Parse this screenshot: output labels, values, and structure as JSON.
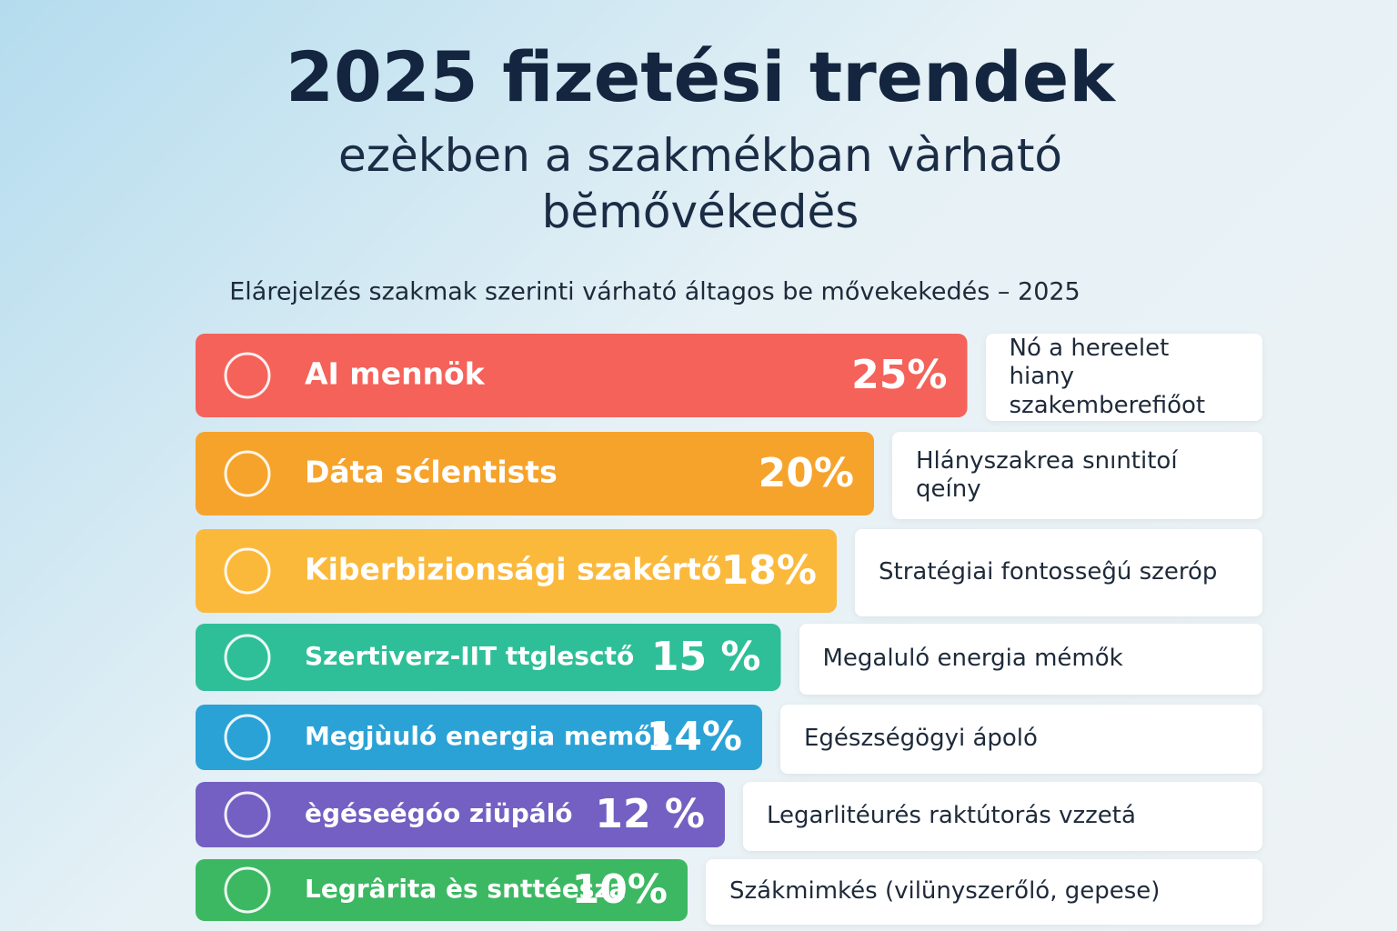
{
  "chart_data": {
    "type": "bar",
    "title": "2025 fizetési trendek",
    "subtitle": "ezèkben a szakmékban vàrható bĕmővékedĕs",
    "caption": "Elárejelzés szakmak szerinti várható áltagos be mővekekedés – 2025",
    "categories": [
      "AI mennök",
      "Dáta sćlentists",
      "Kiberbizionsági szakértő",
      "Szertiverz-IIT ttglesctő",
      "Megjùuló energia memőb",
      "ègéseégóo ziüpáló",
      "Legrârita ès snttéesza"
    ],
    "values": [
      25,
      20,
      18,
      15,
      14,
      12,
      10
    ],
    "value_labels": [
      "25%",
      "20%",
      "18%",
      "15 %",
      "14%",
      "12 %",
      "10%"
    ],
    "colors": [
      "#f4625a",
      "#f6a32c",
      "#fbb93c",
      "#2fbf98",
      "#2aa2d6",
      "#7360c2",
      "#3cb862"
    ],
    "notes": [
      "Nó a hereelet hiany szakemberefiőot",
      "Hlányszakrea snıntitoí qeíny",
      "Stratégiai fontosseĝú szeróp",
      "Megaluló energia mémők",
      "Egészségögyi ápoló",
      "Legarlitéurés raktútorás vzzetá",
      "Szákmimkés (vilünyszerőló, gepese)"
    ]
  }
}
